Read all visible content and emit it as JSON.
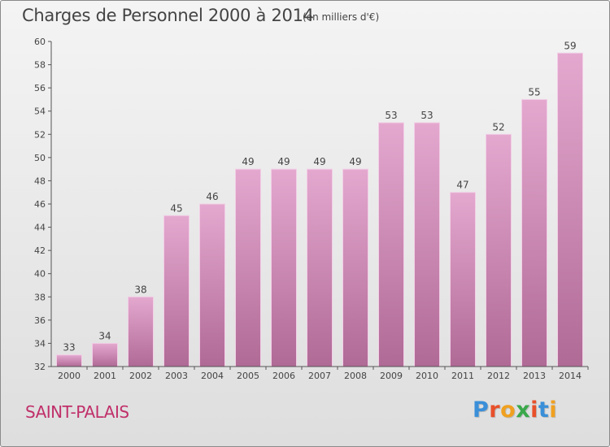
{
  "header": {
    "title": "Charges de Personnel 2000 à 2014",
    "unit": "(en milliers d'€)"
  },
  "footer": {
    "place": "SAINT-PALAIS",
    "logo_letters": [
      "P",
      "r",
      "o",
      "x",
      "i",
      "t",
      "i"
    ],
    "logo_colors": [
      "#3a8fd8",
      "#e8502a",
      "#f0a020",
      "#3aa84a",
      "#e8502a",
      "#3a8fd8",
      "#f0a020"
    ]
  },
  "colors": {
    "bar_top": "#e4a8cf",
    "bar_bottom": "#b06a96",
    "bar_border": "#f2cfe6",
    "axis": "#555555",
    "text": "#444444"
  },
  "chart_data": {
    "type": "bar",
    "title": "Charges de Personnel 2000 à 2014",
    "categories": [
      "2000",
      "2001",
      "2002",
      "2003",
      "2004",
      "2005",
      "2006",
      "2007",
      "2008",
      "2009",
      "2010",
      "2011",
      "2012",
      "2013",
      "2014"
    ],
    "values": [
      33,
      34,
      38,
      45,
      46,
      49,
      49,
      49,
      49,
      53,
      53,
      47,
      52,
      55,
      59
    ],
    "ylim": [
      32,
      60
    ],
    "yticks": [
      32,
      34,
      36,
      38,
      40,
      42,
      44,
      46,
      48,
      50,
      52,
      54,
      56,
      58,
      60
    ],
    "grid": false,
    "legend": "none"
  }
}
